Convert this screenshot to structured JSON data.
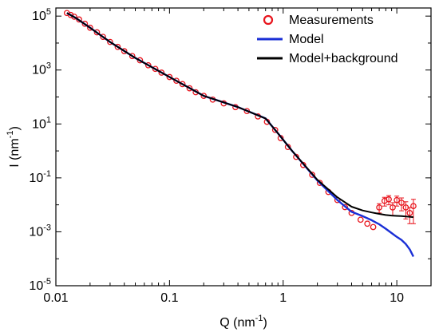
{
  "chart_data": {
    "type": "scatter",
    "x_scale": "log",
    "y_scale": "log",
    "xlim": [
      0.01,
      20
    ],
    "ylim": [
      1e-05,
      200000
    ],
    "xlabel": {
      "base": "Q (nm",
      "sup": "-1",
      "end": ")"
    },
    "ylabel": {
      "base": "I (nm",
      "sup": "-1",
      "end": ")"
    },
    "x_ticks": [
      {
        "value": 0.01,
        "label": "0.01"
      },
      {
        "value": 0.1,
        "label": "0.1"
      },
      {
        "value": 1,
        "label": "1"
      },
      {
        "value": 10,
        "label": "10"
      }
    ],
    "y_ticks": [
      {
        "value": 1e-05,
        "base": "10",
        "exp": "-5"
      },
      {
        "value": 0.001,
        "base": "10",
        "exp": "-3"
      },
      {
        "value": 0.1,
        "base": "10",
        "exp": "-1"
      },
      {
        "value": 10,
        "base": "10",
        "exp": "1"
      },
      {
        "value": 1000,
        "base": "10",
        "exp": "3"
      },
      {
        "value": 100000,
        "base": "10",
        "exp": "5"
      }
    ],
    "grid": false,
    "legend_position": "top-right",
    "colors": {
      "measurements": "#e8141c",
      "model": "#1a2fd6",
      "model_background": "#000000"
    },
    "series": [
      {
        "name": "Measurements",
        "kind": "markers",
        "marker": "open-circle",
        "x": [
          0.0125,
          0.0135,
          0.0145,
          0.016,
          0.018,
          0.02,
          0.023,
          0.026,
          0.03,
          0.035,
          0.04,
          0.047,
          0.055,
          0.065,
          0.075,
          0.085,
          0.1,
          0.115,
          0.13,
          0.15,
          0.17,
          0.2,
          0.24,
          0.3,
          0.38,
          0.48,
          0.6,
          0.72,
          0.85,
          0.95,
          1.1,
          1.3,
          1.5,
          1.8,
          2.1,
          2.5,
          3.0,
          3.5,
          4.0,
          4.8,
          5.5,
          6.2,
          7.0,
          7.8,
          8.5,
          9.2,
          10.0,
          11.0,
          12.0,
          13.0,
          14.0
        ],
        "y": [
          130000,
          110000,
          95000,
          75000,
          52000,
          37000,
          25000,
          17000,
          11000,
          7200,
          5000,
          3300,
          2300,
          1500,
          1100,
          800,
          550,
          400,
          300,
          210,
          150,
          110,
          80,
          58,
          42,
          30,
          19,
          12,
          6,
          3,
          1.4,
          0.6,
          0.3,
          0.13,
          0.065,
          0.03,
          0.015,
          0.0082,
          0.005,
          0.0028,
          0.002,
          0.0015,
          0.008,
          0.014,
          0.016,
          0.008,
          0.015,
          0.012,
          0.008,
          0.005,
          0.009
        ],
        "y_err": [
          0,
          0,
          0,
          0,
          0,
          0,
          0,
          0,
          0,
          0,
          0,
          0,
          0,
          0,
          0,
          0,
          0,
          0,
          0,
          0,
          0,
          0,
          0,
          0,
          0,
          0,
          0,
          0,
          0,
          0,
          0,
          0,
          0,
          0,
          0,
          0,
          0,
          0,
          0,
          0,
          0,
          0,
          0.003,
          0.005,
          0.006,
          0.004,
          0.006,
          0.006,
          0.005,
          0.003,
          0.007
        ]
      },
      {
        "name": "Model",
        "kind": "line",
        "x": [
          0.0125,
          0.015,
          0.02,
          0.03,
          0.05,
          0.1,
          0.2,
          0.4,
          0.7,
          0.9,
          1.2,
          2.0,
          3.0,
          4.0,
          5.0,
          6.0,
          7.0,
          8.0,
          9.0,
          10.0,
          11.0,
          12.0,
          13.0,
          14.0
        ],
        "y": [
          130000,
          85000,
          37000,
          11000,
          2800,
          550,
          110,
          42,
          16,
          4.5,
          1.0,
          0.08,
          0.015,
          0.0055,
          0.0038,
          0.0027,
          0.0019,
          0.0013,
          0.0009,
          0.00065,
          0.0005,
          0.00035,
          0.00022,
          0.00012
        ]
      },
      {
        "name": "Model+background",
        "kind": "line",
        "x": [
          0.0125,
          0.015,
          0.02,
          0.03,
          0.05,
          0.1,
          0.2,
          0.4,
          0.7,
          0.9,
          1.2,
          2.0,
          3.0,
          4.0,
          5.0,
          6.0,
          7.0,
          8.0,
          9.0,
          10.0,
          11.0,
          12.0,
          13.0,
          14.0
        ],
        "y": [
          130000,
          85000,
          37000,
          11000,
          2800,
          550,
          110,
          42,
          16,
          4.5,
          1.0,
          0.085,
          0.019,
          0.0085,
          0.0062,
          0.0052,
          0.0046,
          0.0042,
          0.004,
          0.0039,
          0.0038,
          0.0037,
          0.0036,
          0.0035
        ]
      }
    ]
  }
}
